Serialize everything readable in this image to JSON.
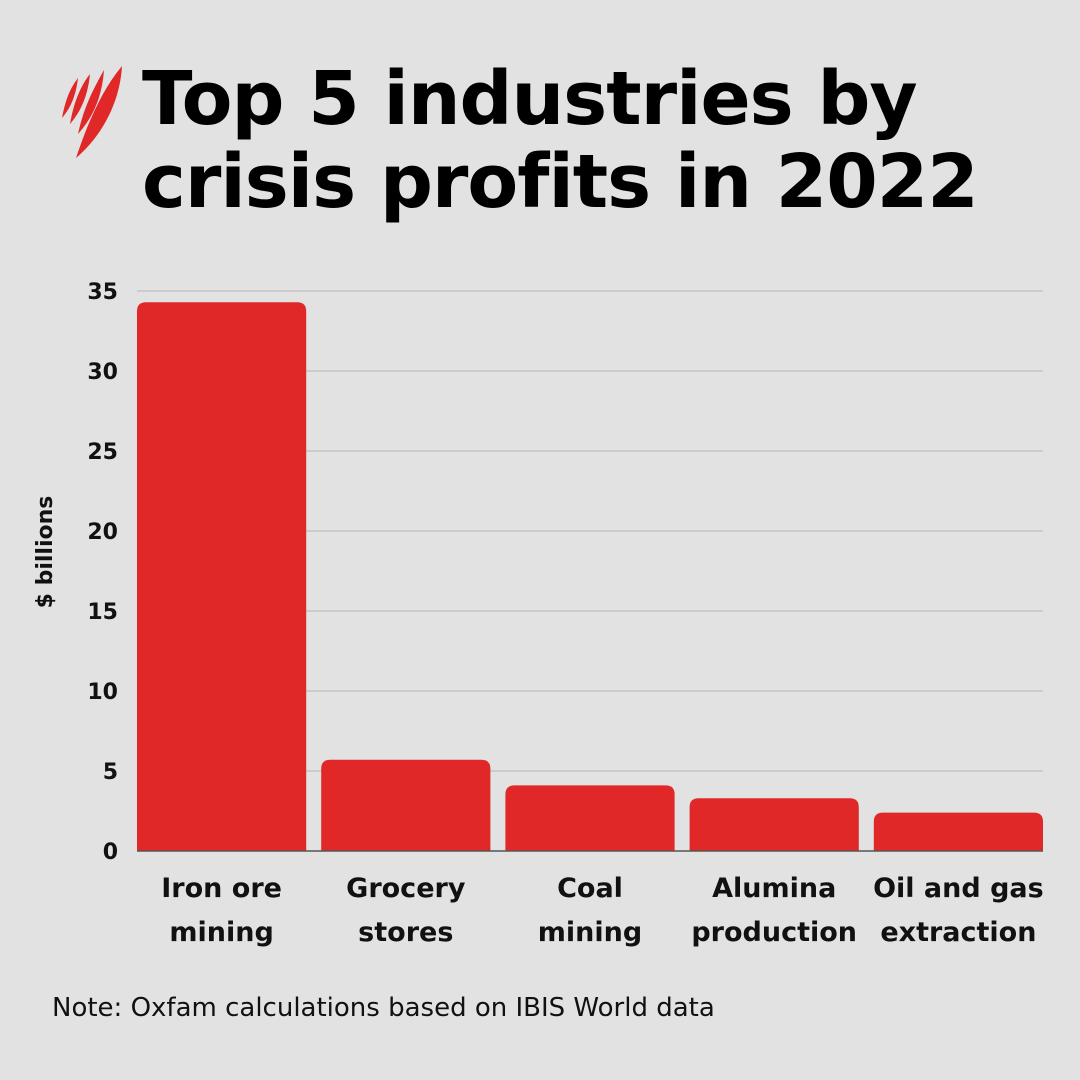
{
  "title": "Top 5 industries by crisis profits in 2022",
  "note": "Note: Oxfam calculations based on IBIS World data",
  "logo": "SBS-logo",
  "colors": {
    "bar": "#e02828",
    "background": "#e2e2e2",
    "grid": "#c4c4c4"
  },
  "chart_data": {
    "type": "bar",
    "title": "Top 5 industries by crisis profits in 2022",
    "categories": [
      [
        "Iron ore",
        "mining"
      ],
      [
        "Grocery",
        "stores"
      ],
      [
        "Coal",
        "mining"
      ],
      [
        "Alumina",
        "production"
      ],
      [
        "Oil and gas",
        "extraction"
      ]
    ],
    "values": [
      34.3,
      5.7,
      4.1,
      3.3,
      2.4
    ],
    "xlabel": "",
    "ylabel": "$ billions",
    "ylim": [
      0,
      35
    ],
    "yticks": [
      0,
      5,
      10,
      15,
      20,
      25,
      30,
      35
    ],
    "grid": true,
    "legend": "none"
  }
}
